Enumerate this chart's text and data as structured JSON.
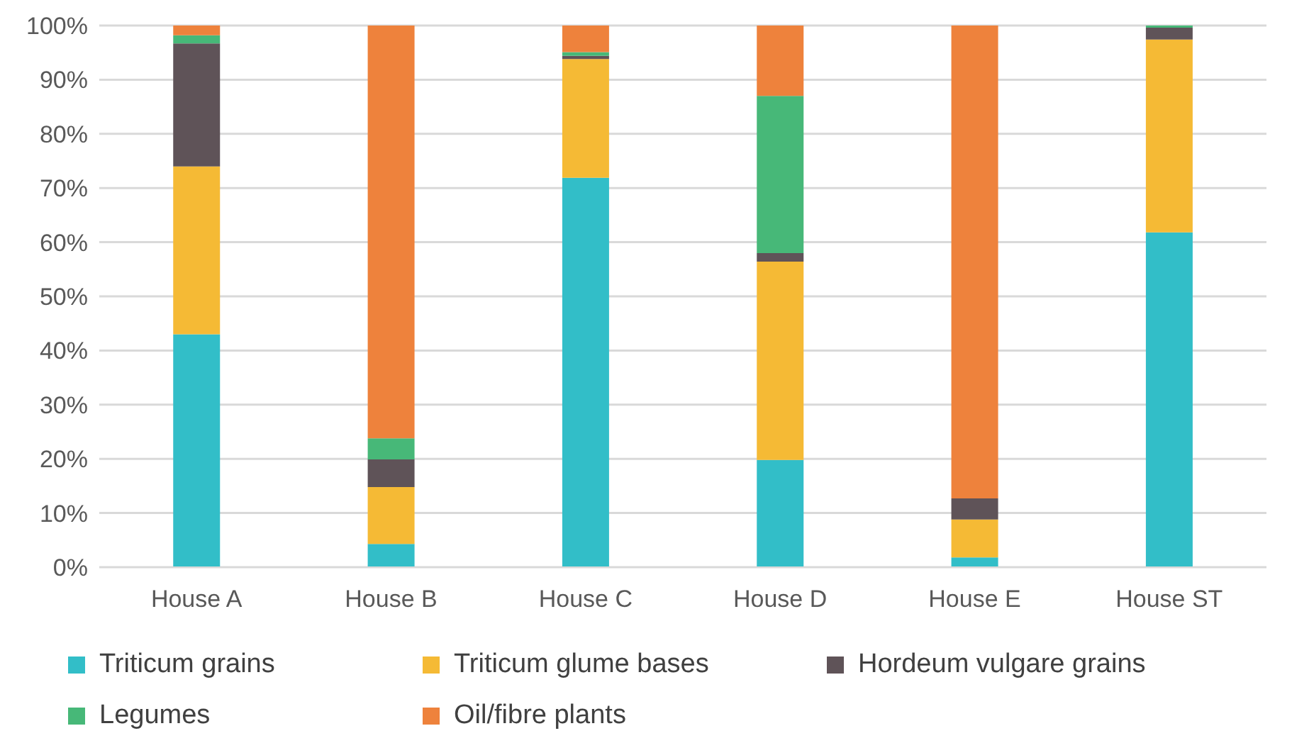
{
  "chart_data": {
    "type": "bar",
    "stacked": true,
    "categories": [
      "House A",
      "House B",
      "House C",
      "House D",
      "House E",
      "House ST"
    ],
    "series": [
      {
        "name": "Triticum grains",
        "color": "#32bec8",
        "values": [
          43,
          4.3,
          71.9,
          19.8,
          1.8,
          61.8
        ]
      },
      {
        "name": "Triticum glume bases",
        "color": "#f5ba35",
        "values": [
          31,
          10.5,
          21.9,
          36.6,
          7,
          35.6
        ]
      },
      {
        "name": "Hordeum vulgare grains",
        "color": "#5f5358",
        "values": [
          22.7,
          5.1,
          0.6,
          1.6,
          3.9,
          2.2
        ]
      },
      {
        "name": "Legumes",
        "color": "#47b878",
        "values": [
          1.5,
          3.9,
          0.7,
          29,
          0,
          0.4
        ]
      },
      {
        "name": "Oil/fibre plants",
        "color": "#ee823c",
        "values": [
          1.8,
          76.2,
          4.9,
          13,
          87.3,
          0
        ]
      }
    ],
    "ylim": [
      0,
      100
    ],
    "yticks": [
      {
        "value": 0,
        "label": "0%"
      },
      {
        "value": 10,
        "label": "10%"
      },
      {
        "value": 20,
        "label": "20%"
      },
      {
        "value": 30,
        "label": "30%"
      },
      {
        "value": 40,
        "label": "40%"
      },
      {
        "value": 50,
        "label": "50%"
      },
      {
        "value": 60,
        "label": "60%"
      },
      {
        "value": 70,
        "label": "70%"
      },
      {
        "value": 80,
        "label": "80%"
      },
      {
        "value": 90,
        "label": "90%"
      },
      {
        "value": 100,
        "label": "100%"
      }
    ],
    "grid": "y",
    "legend": "bottom"
  }
}
